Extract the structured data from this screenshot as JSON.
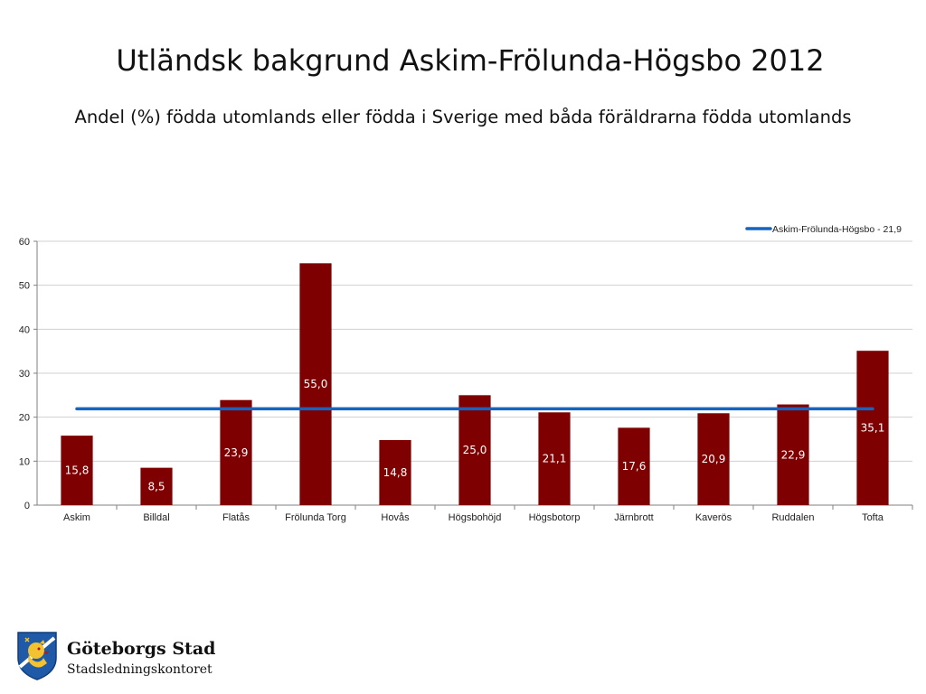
{
  "slide": {
    "title": "Utländsk bakgrund Askim-Frölunda-Högsbo 2012",
    "subtitle": "Andel (%) födda utomlands eller födda i Sverige med båda föräldrarna födda utomlands"
  },
  "chart_data": {
    "type": "bar",
    "title": "",
    "xlabel": "",
    "ylabel": "",
    "ylim": [
      0,
      60
    ],
    "yticks": [
      "0",
      "10",
      "20",
      "30",
      "40",
      "50",
      "60"
    ],
    "grid": true,
    "legend_position": "top-right",
    "categories": [
      "Askim",
      "Billdal",
      "Flatås",
      "Frölunda Torg",
      "Hovås",
      "Högsbohöjd",
      "Högsbotorp",
      "Järnbrott",
      "Kaverös",
      "Ruddalen",
      "Tofta"
    ],
    "series": [
      {
        "values": [
          15.8,
          8.5,
          23.9,
          55.0,
          14.8,
          25.0,
          21.1,
          17.6,
          20.9,
          22.9,
          35.1
        ],
        "value_labels": [
          "15,8",
          "8,5",
          "23,9",
          "55,0",
          "14,8",
          "25,0",
          "21,1",
          "17,6",
          "20,9",
          "22,9",
          "35,1"
        ],
        "color": "#7f0000"
      }
    ],
    "reference_line": {
      "name": "Askim-Frölunda-Högsbo - 21,9",
      "value": 21.9,
      "color": "#1565c0"
    }
  },
  "branding": {
    "name": "Göteborgs Stad",
    "department": "Stadsledningskontoret",
    "logo_icon": "goteborg-lion-shield-icon"
  }
}
